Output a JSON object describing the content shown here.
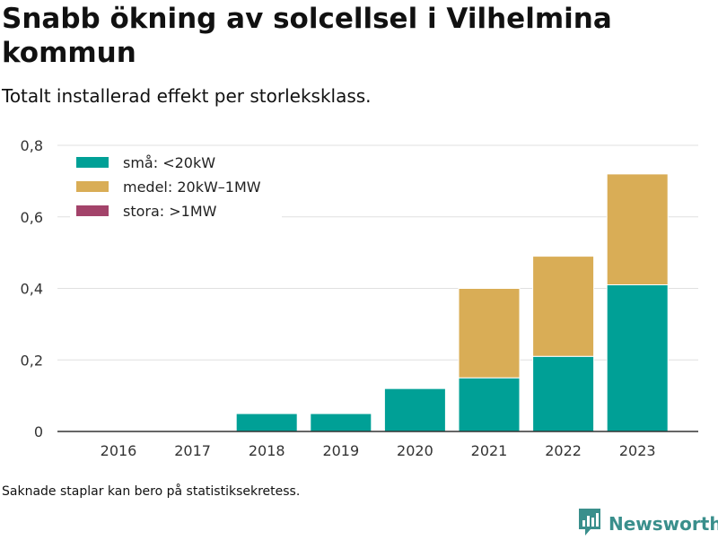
{
  "title": "Snabb ökning av solcellsel i Vilhelmina kommun",
  "subtitle": "Totalt installerad effekt per storleksklass.",
  "footnote": "Saknade staplar kan bero på statistiksekretess.",
  "brand": "Newsworthy",
  "icons": {
    "brand": "newsworthy-logo-icon"
  },
  "colors": {
    "small": "#00a096",
    "medium": "#d9ad56",
    "large": "#a3436a",
    "grid": "#e0e0e0",
    "brand": "#3a8f8c"
  },
  "chart_data": {
    "type": "bar",
    "stacked": true,
    "title": "",
    "xlabel": "",
    "ylabel": "",
    "categories": [
      "2016",
      "2017",
      "2018",
      "2019",
      "2020",
      "2021",
      "2022",
      "2023"
    ],
    "series": [
      {
        "name": "små: <20kW",
        "color": "#00a096",
        "values": [
          0,
          0,
          0.05,
          0.05,
          0.12,
          0.15,
          0.21,
          0.41
        ]
      },
      {
        "name": "medel: 20kW–1MW",
        "color": "#d9ad56",
        "values": [
          0,
          0,
          0,
          0,
          0,
          0.25,
          0.28,
          0.31
        ]
      },
      {
        "name": "stora: >1MW",
        "color": "#a3436a",
        "values": [
          0,
          0,
          0,
          0,
          0,
          0,
          0,
          0
        ]
      }
    ],
    "ylim": [
      0,
      0.8
    ],
    "yticks": [
      0,
      0.2,
      0.4,
      0.6,
      0.8
    ],
    "ytick_labels": [
      "0",
      "0,2",
      "0,4",
      "0,6",
      "0,8"
    ],
    "grid": true,
    "legend_position": "top-left"
  }
}
